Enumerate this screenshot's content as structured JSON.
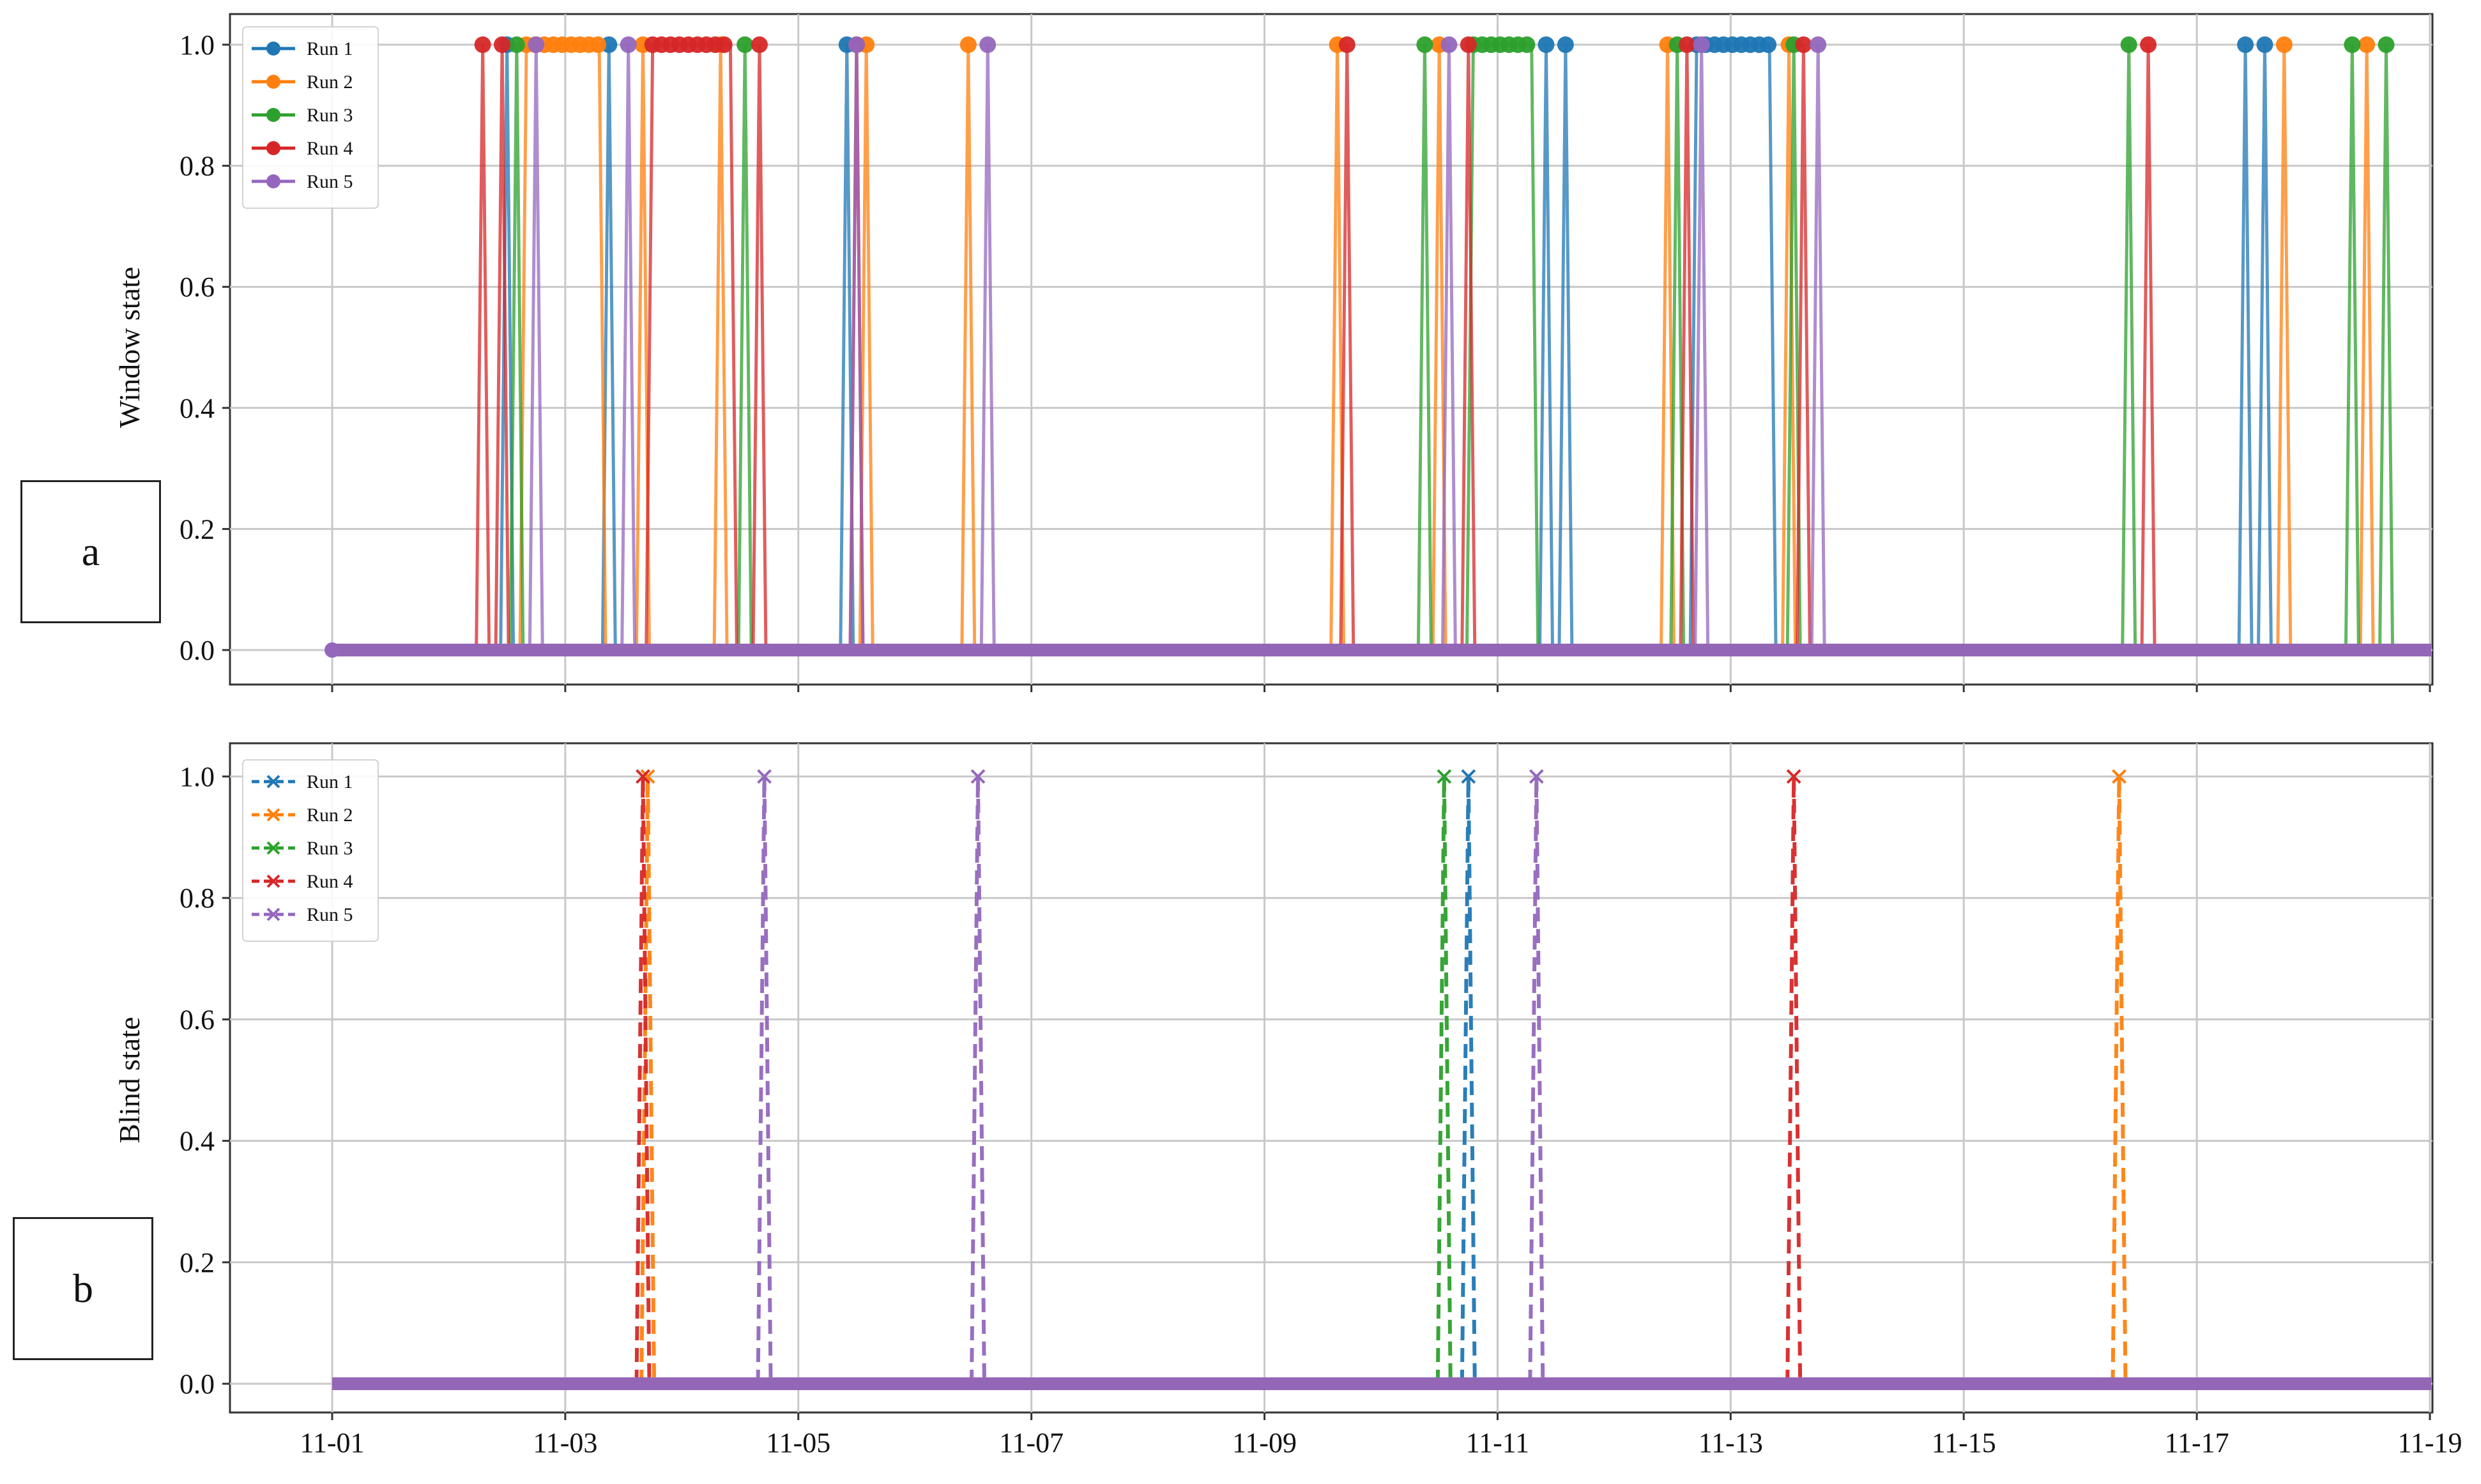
{
  "chart_data": [
    {
      "type": "line",
      "panel_label": "a",
      "ylabel": "Window state",
      "yticks": [
        "0.0",
        "0.2",
        "0.4",
        "0.6",
        "0.8",
        "1.0"
      ],
      "ylim": [
        -0.05,
        1.05
      ],
      "xlim": [
        "2018-10-31",
        "2018-11-19"
      ],
      "grid": true,
      "legend_position": "top-left",
      "marker": "circle",
      "baseline": 0,
      "series": [
        {
          "name": "Run 1",
          "color": "#1f77b4",
          "open_intervals": [
            [
              "11-02 12:00",
              "11-02 12:00"
            ],
            [
              "11-03 09:00",
              "11-03 09:00"
            ],
            [
              "11-05 10:00",
              "11-05 10:00"
            ],
            [
              "11-11 10:00",
              "11-11 10:00"
            ],
            [
              "11-11 14:00",
              "11-11 14:00"
            ],
            [
              "11-12 17:00",
              "11-13 08:00"
            ],
            [
              "11-17 10:00",
              "11-17 10:00"
            ],
            [
              "11-17 14:00",
              "11-17 14:00"
            ]
          ]
        },
        {
          "name": "Run 2",
          "color": "#ff7f0e",
          "open_intervals": [
            [
              "11-02 16:00",
              "11-03 07:00"
            ],
            [
              "11-03 16:00",
              "11-03 16:00"
            ],
            [
              "11-04 08:00",
              "11-04 08:00"
            ],
            [
              "11-05 14:00",
              "11-05 14:00"
            ],
            [
              "11-06 11:00",
              "11-06 11:00"
            ],
            [
              "11-09 15:00",
              "11-09 15:00"
            ],
            [
              "11-10 12:00",
              "11-10 12:00"
            ],
            [
              "11-12 11:00",
              "11-12 11:00"
            ],
            [
              "11-13 12:00",
              "11-13 12:00"
            ],
            [
              "11-17 18:00",
              "11-17 18:00"
            ],
            [
              "11-18 11:00",
              "11-18 11:00"
            ]
          ]
        },
        {
          "name": "Run 3",
          "color": "#2ca02c",
          "open_intervals": [
            [
              "11-02 14:00",
              "11-02 14:00"
            ],
            [
              "11-04 13:00",
              "11-04 13:00"
            ],
            [
              "11-10 09:00",
              "11-10 09:00"
            ],
            [
              "11-10 19:00",
              "11-11 07:00"
            ],
            [
              "11-12 13:00",
              "11-12 13:00"
            ],
            [
              "11-13 13:00",
              "11-13 13:00"
            ],
            [
              "11-16 10:00",
              "11-16 10:00"
            ],
            [
              "11-18 08:00",
              "11-18 08:00"
            ],
            [
              "11-18 15:00",
              "11-18 15:00"
            ]
          ]
        },
        {
          "name": "Run 4",
          "color": "#d62728",
          "open_intervals": [
            [
              "11-02 07:00",
              "11-02 07:00"
            ],
            [
              "11-02 11:00",
              "11-02 11:00"
            ],
            [
              "11-03 18:00",
              "11-04 10:00"
            ],
            [
              "11-04 16:00",
              "11-04 16:00"
            ],
            [
              "11-05 12:00",
              "11-05 12:00"
            ],
            [
              "11-09 17:00",
              "11-09 17:00"
            ],
            [
              "11-10 18:00",
              "11-10 18:00"
            ],
            [
              "11-12 15:00",
              "11-12 15:00"
            ],
            [
              "11-13 15:00",
              "11-13 15:00"
            ],
            [
              "11-16 14:00",
              "11-16 14:00"
            ]
          ]
        },
        {
          "name": "Run 5",
          "color": "#9467bd",
          "open_intervals": [
            [
              "11-02 18:00",
              "11-02 18:00"
            ],
            [
              "11-03 13:00",
              "11-03 13:00"
            ],
            [
              "11-05 12:00",
              "11-05 12:00"
            ],
            [
              "11-06 15:00",
              "11-06 15:00"
            ],
            [
              "11-10 14:00",
              "11-10 14:00"
            ],
            [
              "11-12 18:00",
              "11-12 18:00"
            ],
            [
              "11-13 18:00",
              "11-13 18:00"
            ]
          ]
        }
      ]
    },
    {
      "type": "line",
      "panel_label": "b",
      "ylabel": "Blind state",
      "yticks": [
        "0.0",
        "0.2",
        "0.4",
        "0.6",
        "0.8",
        "1.0"
      ],
      "ylim": [
        -0.05,
        1.05
      ],
      "xlim": [
        "2018-10-31",
        "2018-11-19"
      ],
      "xticks": [
        "11-01",
        "11-03",
        "11-05",
        "11-07",
        "11-09",
        "11-11",
        "11-13",
        "11-15",
        "11-17",
        "11-19"
      ],
      "grid": true,
      "legend_position": "top-left",
      "marker": "x",
      "line_style": "dashed",
      "baseline": 0,
      "series": [
        {
          "name": "Run 1",
          "color": "#1f77b4",
          "open_intervals": [
            [
              "11-10 18:00",
              "11-10 18:00"
            ]
          ]
        },
        {
          "name": "Run 2",
          "color": "#ff7f0e",
          "open_intervals": [
            [
              "11-03 17:00",
              "11-03 17:00"
            ],
            [
              "11-16 08:00",
              "11-16 08:00"
            ]
          ]
        },
        {
          "name": "Run 3",
          "color": "#2ca02c",
          "open_intervals": [
            [
              "11-10 13:00",
              "11-10 13:00"
            ]
          ]
        },
        {
          "name": "Run 4",
          "color": "#d62728",
          "open_intervals": [
            [
              "11-03 16:00",
              "11-03 16:00"
            ],
            [
              "11-13 13:00",
              "11-13 13:00"
            ]
          ]
        },
        {
          "name": "Run 5",
          "color": "#9467bd",
          "open_intervals": [
            [
              "11-04 17:00",
              "11-04 17:00"
            ],
            [
              "11-06 13:00",
              "11-06 13:00"
            ],
            [
              "11-11 08:00",
              "11-11 08:00"
            ]
          ]
        }
      ]
    }
  ]
}
